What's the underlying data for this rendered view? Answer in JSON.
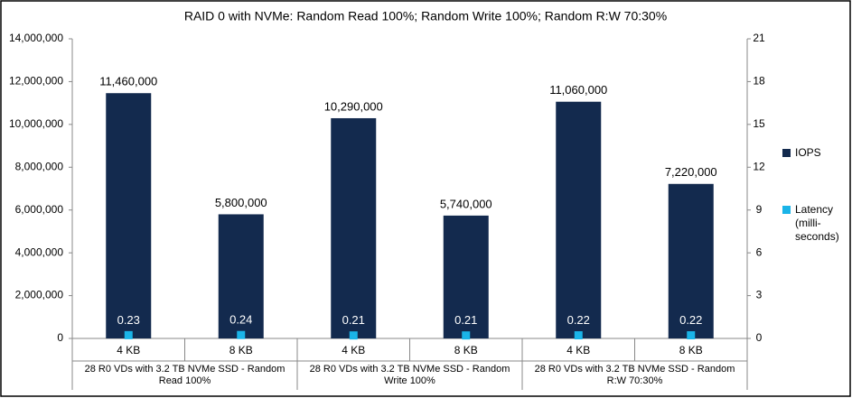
{
  "chart_data": {
    "type": "bar",
    "title": "RAID 0 with NVMe: Random Read 100%; Random Write 100%; Random R:W 70:30%",
    "categories": [
      "4 KB",
      "8 KB",
      "4 KB",
      "8 KB",
      "4 KB",
      "8 KB"
    ],
    "groups": [
      "28 R0 VDs with 3.2 TB NVMe SSD - Random Read 100%",
      "28 R0 VDs with 3.2 TB NVMe SSD - Random Write 100%",
      "28 R0 VDs with 3.2 TB NVMe SSD - Random R:W 70:30%"
    ],
    "series": [
      {
        "name": "IOPS",
        "color": "#132a4e",
        "values": [
          11460000,
          5800000,
          10290000,
          5740000,
          11060000,
          7220000
        ],
        "value_labels": [
          "11,460,000",
          "5,800,000",
          "10,290,000",
          "5,740,000",
          "11,060,000",
          "7,220,000"
        ]
      },
      {
        "name": "Latency (milli-seconds)",
        "color": "#1ab4e8",
        "axis": "y2",
        "values": [
          0.23,
          0.24,
          0.21,
          0.21,
          0.22,
          0.22
        ]
      }
    ],
    "ylim": [
      0,
      14000000
    ],
    "yticks": [
      0,
      {
        "value": 2000000,
        "label": "2,000,000"
      },
      {
        "value": 4000000,
        "label": "4,000,000"
      },
      {
        "value": 6000000,
        "label": "6,000,000"
      },
      {
        "value": 8000000,
        "label": "8,000,000"
      },
      {
        "value": 10000000,
        "label": "10,000,000"
      },
      {
        "value": 12000000,
        "label": "12,000,000"
      },
      {
        "value": 14000000,
        "label": "14,000,000"
      }
    ],
    "y2lim": [
      0,
      21
    ],
    "y2ticks": [
      0,
      3,
      6,
      9,
      12,
      15,
      18,
      21
    ],
    "legend": "right"
  }
}
